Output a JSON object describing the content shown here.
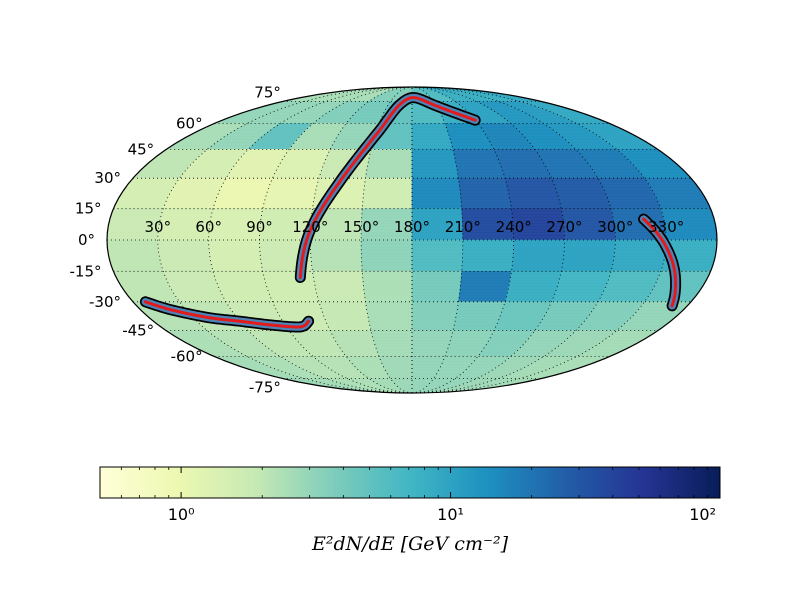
{
  "chart_data": {
    "type": "heatmap",
    "projection": "mollweide",
    "title": "",
    "lat_labels": [
      "75°",
      "60°",
      "45°",
      "30°",
      "15°",
      "0°",
      "-15°",
      "-30°",
      "-45°",
      "-60°",
      "-75°"
    ],
    "lat_values": [
      75,
      60,
      45,
      30,
      15,
      0,
      -15,
      -30,
      -45,
      -60,
      -75
    ],
    "lon_labels": [
      "30°",
      "60°",
      "90°",
      "120°",
      "150°",
      "180°",
      "210°",
      "240°",
      "270°",
      "300°",
      "330°"
    ],
    "lon_values": [
      30,
      60,
      90,
      120,
      150,
      180,
      210,
      240,
      270,
      300,
      330
    ],
    "grid": true,
    "colormap": [
      "#ffffd9",
      "#edf8b1",
      "#c7e9b4",
      "#7fcdbb",
      "#41b6c4",
      "#1d91c0",
      "#225ea8",
      "#253494",
      "#081d58"
    ],
    "colorbar": {
      "scale": "log",
      "range": [
        0.5,
        100
      ],
      "ticks": [
        {
          "value": 1,
          "label": "10⁰"
        },
        {
          "value": 10,
          "label": "10¹"
        },
        {
          "value": 100,
          "label": "10²"
        }
      ],
      "label": "E²dN/dE [GeV cm⁻²]"
    },
    "rows": [
      {
        "lat_range": [
          75,
          90
        ],
        "values": [
          2.5,
          2.5,
          2.5,
          2.5,
          3.5,
          3.5,
          5,
          6,
          8,
          8,
          8,
          9
        ]
      },
      {
        "lat_range": [
          60,
          75
        ],
        "values": [
          3,
          3,
          3,
          3.5,
          4,
          5,
          6,
          8,
          10,
          12,
          11,
          9
        ]
      },
      {
        "lat_range": [
          45,
          60
        ],
        "values": [
          2.5,
          3,
          5,
          2.5,
          3,
          5,
          9,
          14,
          16,
          14,
          12,
          10
        ]
      },
      {
        "lat_range": [
          30,
          45
        ],
        "values": [
          2,
          1.5,
          1.2,
          1.3,
          1.8,
          2.5,
          12,
          20,
          22,
          20,
          18,
          14
        ]
      },
      {
        "lat_range": [
          15,
          30
        ],
        "values": [
          1.5,
          1.2,
          1,
          1.1,
          1.3,
          1.6,
          15,
          25,
          30,
          28,
          24,
          18
        ]
      },
      {
        "lat_range": [
          0,
          15
        ],
        "values": [
          1.8,
          1.5,
          1.4,
          1.6,
          2,
          3,
          10,
          35,
          40,
          30,
          22,
          15
        ]
      },
      {
        "lat_range": [
          -15,
          0
        ],
        "values": [
          2,
          1.8,
          1.5,
          1.7,
          2.2,
          3.2,
          6,
          8,
          10,
          10,
          9,
          8
        ]
      },
      {
        "lat_range": [
          -30,
          -15
        ],
        "values": [
          2,
          1.8,
          1.6,
          1.6,
          1.8,
          2.4,
          4,
          18,
          8,
          7,
          6,
          5
        ]
      },
      {
        "lat_range": [
          -45,
          -30
        ],
        "values": [
          2.2,
          2,
          1.8,
          1.7,
          1.9,
          2.5,
          3.5,
          4,
          4.5,
          4,
          3.5,
          3
        ]
      },
      {
        "lat_range": [
          -60,
          -45
        ],
        "values": [
          2.4,
          2.2,
          2,
          2,
          2.2,
          2.6,
          3,
          3.2,
          3.5,
          3,
          2.8,
          2.6
        ]
      },
      {
        "lat_range": [
          -75,
          -60
        ],
        "values": [
          2.6,
          2.4,
          2.2,
          2.2,
          2.4,
          2.7,
          3,
          3,
          3,
          2.8,
          2.6,
          2.5
        ]
      },
      {
        "lat_range": [
          -90,
          -75
        ],
        "values": [
          2.8,
          2.6,
          2.4,
          2.4,
          2.6,
          2.8,
          3,
          3,
          3,
          2.8,
          2.7,
          2.6
        ]
      }
    ],
    "contours": [
      {
        "name": "band-1",
        "points": [
          [
            112,
            -18
          ],
          [
            120,
            5
          ],
          [
            135,
            30
          ],
          [
            152,
            55
          ],
          [
            165,
            73
          ],
          [
            185,
            78
          ],
          [
            215,
            70
          ],
          [
            240,
            62
          ]
        ]
      },
      {
        "name": "band-2",
        "points": [
          [
            8,
            -30
          ],
          [
            20,
            -34
          ],
          [
            40,
            -38
          ],
          [
            60,
            -40
          ],
          [
            80,
            -42
          ],
          [
            100,
            -43
          ],
          [
            108,
            -40
          ]
        ]
      },
      {
        "name": "band-3",
        "points": [
          [
            318,
            10
          ],
          [
            326,
            2
          ],
          [
            335,
            -10
          ],
          [
            343,
            -22
          ],
          [
            350,
            -32
          ]
        ]
      }
    ]
  }
}
